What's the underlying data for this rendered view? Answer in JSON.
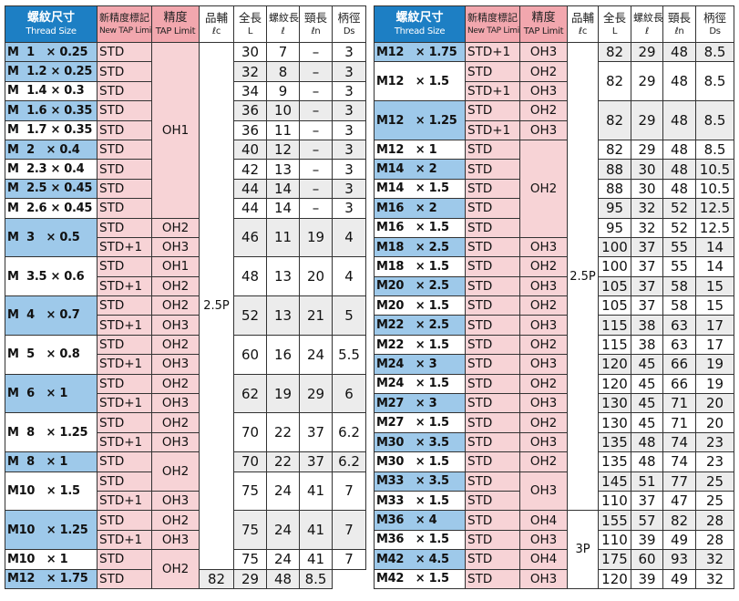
{
  "headers": {
    "size_ja": "螺紋尺寸",
    "size_en": "Thread Size",
    "tap_ja": "新精度標記",
    "tap_en": "New TAP Limit",
    "prec_ja": "精度",
    "prec_en": "TAP Limit",
    "aux_ja": "品輔",
    "aux_en": "ℓc",
    "len_ja": "全長",
    "len_en": "L",
    "thr_ja": "螺紋長",
    "thr_en": "ℓ",
    "neck_ja": "頸長",
    "neck_en": "ℓn",
    "shank_ja": "柄徑",
    "shank_en": "Ds"
  },
  "aux_values": {
    "left": "2.5P",
    "right_top": "2.5P",
    "right_bottom": "3P"
  },
  "left_rows": [
    {
      "size": "M  1   × 0.25",
      "tap": "STD",
      "prec": "OH1",
      "L": "30",
      "l": "7",
      "ln": "–",
      "ds": "3",
      "hl": true,
      "shade": false
    },
    {
      "size": "M  1.2 × 0.25",
      "tap": "STD",
      "L": "32",
      "l": "8",
      "ln": "–",
      "ds": "3",
      "hl": true,
      "shade": true
    },
    {
      "size": "M  1.4 × 0.3",
      "tap": "STD",
      "L": "34",
      "l": "9",
      "ln": "–",
      "ds": "3",
      "hl": false,
      "shade": false
    },
    {
      "size": "M  1.6 × 0.35",
      "tap": "STD",
      "L": "36",
      "l": "10",
      "ln": "–",
      "ds": "3",
      "hl": true,
      "shade": true
    },
    {
      "size": "M  1.7 × 0.35",
      "tap": "STD",
      "L": "36",
      "l": "11",
      "ln": "–",
      "ds": "3",
      "hl": false,
      "shade": false
    },
    {
      "size": "M  2   × 0.4",
      "tap": "STD",
      "L": "40",
      "l": "12",
      "ln": "–",
      "ds": "3",
      "hl": true,
      "shade": true
    },
    {
      "size": "M  2.3 × 0.4",
      "tap": "STD",
      "L": "42",
      "l": "13",
      "ln": "–",
      "ds": "3",
      "hl": false,
      "shade": false
    },
    {
      "size": "M  2.5 × 0.45",
      "tap": "STD",
      "L": "44",
      "l": "14",
      "ln": "–",
      "ds": "3",
      "hl": true,
      "shade": true
    },
    {
      "size": "M  2.6 × 0.45",
      "tap": "STD",
      "L": "44",
      "l": "14",
      "ln": "–",
      "ds": "3",
      "hl": false,
      "shade": false
    }
  ],
  "left_pairs": [
    {
      "size": "M  3   × 0.5",
      "hl": true,
      "shade": true,
      "L": "46",
      "l": "11",
      "ln": "19",
      "ds": "4",
      "tap1": "STD",
      "prec1": "OH2",
      "tap2": "STD+1",
      "prec2": "OH3"
    },
    {
      "size": "M  3.5 × 0.6",
      "hl": false,
      "shade": false,
      "L": "48",
      "l": "13",
      "ln": "20",
      "ds": "4",
      "tap1": "STD",
      "prec1": "OH1",
      "tap2": "STD+1",
      "prec2": "OH2"
    },
    {
      "size": "M  4   × 0.7",
      "hl": true,
      "shade": true,
      "L": "52",
      "l": "13",
      "ln": "21",
      "ds": "5",
      "tap1": "STD",
      "prec1": "OH2",
      "tap2": "STD+1",
      "prec2": "OH3"
    },
    {
      "size": "M  5   × 0.8",
      "hl": false,
      "shade": false,
      "L": "60",
      "l": "16",
      "ln": "24",
      "ds": "5.5",
      "tap1": "STD",
      "prec1": "OH2",
      "tap2": "STD+1",
      "prec2": "OH3"
    },
    {
      "size": "M  6   × 1",
      "hl": true,
      "shade": true,
      "L": "62",
      "l": "19",
      "ln": "29",
      "ds": "6",
      "tap1": "STD",
      "prec1": "OH2",
      "tap2": "STD+1",
      "prec2": "OH3"
    },
    {
      "size": "M  8   × 1.25",
      "hl": false,
      "shade": false,
      "L": "70",
      "l": "22",
      "ln": "37",
      "ds": "6.2",
      "tap1": "STD",
      "prec1": "OH2",
      "tap2": "STD+1",
      "prec2": "OH3"
    }
  ],
  "left_m8x1": {
    "size": "M  8   × 1",
    "hl": true,
    "shade": true,
    "tap": "STD",
    "prec": "OH2",
    "L": "70",
    "l": "22",
    "ln": "37",
    "ds": "6.2"
  },
  "left_m10x15": {
    "size": "M10   × 1.5",
    "hl": false,
    "shade": false,
    "tap1": "STD",
    "tap2": "STD+1",
    "prec2": "OH3",
    "L": "75",
    "l": "24",
    "ln": "41",
    "ds": "7"
  },
  "left_m10x125": {
    "size": "M10   × 1.25",
    "hl": true,
    "shade": true,
    "tap1": "STD",
    "prec1": "OH2",
    "tap2": "STD+1",
    "prec2": "OH3",
    "L": "75",
    "l": "24",
    "ln": "41",
    "ds": "7"
  },
  "left_tail": [
    {
      "size": "M10   × 1",
      "hl": false,
      "shade": false,
      "tap": "STD",
      "prec": "OH2",
      "L": "75",
      "l": "24",
      "ln": "41",
      "ds": "7"
    },
    {
      "size": "M12   × 1.75",
      "hl": true,
      "shade": true,
      "tap": "STD",
      "L": "82",
      "l": "29",
      "ln": "48",
      "ds": "8.5"
    }
  ],
  "right_rows": {
    "r1": {
      "size": "M12   × 1.75",
      "tap": "STD+1",
      "prec": "OH3",
      "L": "82",
      "l": "29",
      "ln": "48",
      "ds": "8.5"
    },
    "r2": {
      "size": "M12   × 1.5",
      "tap1": "STD",
      "prec1": "OH2",
      "tap2": "STD+1",
      "prec2": "OH3",
      "L": "82",
      "l": "29",
      "ln": "48",
      "ds": "8.5"
    },
    "r3": {
      "size": "M12   × 1.25",
      "tap1": "STD",
      "prec1": "OH2",
      "tap2": "STD+1",
      "prec2": "OH3",
      "L": "82",
      "l": "29",
      "ln": "48",
      "ds": "8.5"
    },
    "block": [
      {
        "size": "M12   × 1",
        "hl": false,
        "shade": false,
        "tap": "STD",
        "prec": "OH2",
        "L": "82",
        "l": "29",
        "ln": "48",
        "ds": "8.5"
      },
      {
        "size": "M14   × 2",
        "hl": true,
        "shade": true,
        "tap": "STD",
        "L": "88",
        "l": "30",
        "ln": "48",
        "ds": "10.5"
      },
      {
        "size": "M14   × 1.5",
        "hl": false,
        "shade": false,
        "tap": "STD",
        "L": "88",
        "l": "30",
        "ln": "48",
        "ds": "10.5"
      },
      {
        "size": "M16   × 2",
        "hl": true,
        "shade": true,
        "tap": "STD",
        "L": "95",
        "l": "32",
        "ln": "52",
        "ds": "12.5"
      },
      {
        "size": "M16   × 1.5",
        "hl": false,
        "shade": false,
        "tap": "STD",
        "L": "95",
        "l": "32",
        "ln": "52",
        "ds": "12.5"
      }
    ],
    "rest": [
      {
        "size": "M18   × 2.5",
        "hl": true,
        "shade": true,
        "tap": "STD",
        "prec": "OH3",
        "L": "100",
        "l": "37",
        "ln": "55",
        "ds": "14"
      },
      {
        "size": "M18   × 1.5",
        "hl": false,
        "shade": false,
        "tap": "STD",
        "prec": "OH2",
        "L": "100",
        "l": "37",
        "ln": "55",
        "ds": "14"
      },
      {
        "size": "M20   × 2.5",
        "hl": true,
        "shade": true,
        "tap": "STD",
        "prec": "OH3",
        "L": "105",
        "l": "37",
        "ln": "58",
        "ds": "15"
      },
      {
        "size": "M20   × 1.5",
        "hl": false,
        "shade": false,
        "tap": "STD",
        "prec": "OH2",
        "L": "105",
        "l": "37",
        "ln": "58",
        "ds": "15"
      },
      {
        "size": "M22   × 2.5",
        "hl": true,
        "shade": true,
        "tap": "STD",
        "prec": "OH3",
        "L": "115",
        "l": "38",
        "ln": "63",
        "ds": "17"
      },
      {
        "size": "M22   × 1.5",
        "hl": false,
        "shade": false,
        "tap": "STD",
        "prec": "OH2",
        "L": "115",
        "l": "38",
        "ln": "63",
        "ds": "17"
      },
      {
        "size": "M24   × 3",
        "hl": true,
        "shade": true,
        "tap": "STD",
        "prec": "OH3",
        "L": "120",
        "l": "45",
        "ln": "66",
        "ds": "19"
      },
      {
        "size": "M24   × 1.5",
        "hl": false,
        "shade": false,
        "tap": "STD",
        "prec": "OH2",
        "L": "120",
        "l": "45",
        "ln": "66",
        "ds": "19"
      },
      {
        "size": "M27   × 3",
        "hl": true,
        "shade": true,
        "tap": "STD",
        "prec": "OH3",
        "L": "130",
        "l": "45",
        "ln": "71",
        "ds": "20"
      },
      {
        "size": "M27   × 1.5",
        "hl": false,
        "shade": false,
        "tap": "STD",
        "prec": "OH2",
        "L": "130",
        "l": "45",
        "ln": "71",
        "ds": "20"
      },
      {
        "size": "M30   × 3.5",
        "hl": true,
        "shade": true,
        "tap": "STD",
        "prec": "OH3",
        "L": "135",
        "l": "48",
        "ln": "74",
        "ds": "23"
      },
      {
        "size": "M30   × 1.5",
        "hl": false,
        "shade": false,
        "tap": "STD",
        "prec": "OH2",
        "L": "135",
        "l": "48",
        "ln": "74",
        "ds": "23"
      }
    ],
    "m33a": {
      "size": "M33   × 3.5",
      "hl": true,
      "shade": true,
      "tap": "STD",
      "prec": "OH3",
      "L": "145",
      "l": "51",
      "ln": "77",
      "ds": "25"
    },
    "m33b": {
      "size": "M33   × 1.5",
      "hl": false,
      "shade": false,
      "tap": "STD",
      "L": "110",
      "l": "37",
      "ln": "47",
      "ds": "25"
    },
    "bottom": [
      {
        "size": "M36   × 4",
        "hl": true,
        "shade": true,
        "tap": "STD",
        "prec": "OH4",
        "L": "155",
        "l": "57",
        "ln": "82",
        "ds": "28"
      },
      {
        "size": "M36   × 1.5",
        "hl": false,
        "shade": false,
        "tap": "STD",
        "prec": "OH3",
        "L": "110",
        "l": "39",
        "ln": "49",
        "ds": "28"
      },
      {
        "size": "M42   × 4.5",
        "hl": true,
        "shade": true,
        "tap": "STD",
        "prec": "OH4",
        "L": "175",
        "l": "60",
        "ln": "93",
        "ds": "32"
      },
      {
        "size": "M42   × 1.5",
        "hl": false,
        "shade": false,
        "tap": "STD",
        "prec": "OH3",
        "L": "120",
        "l": "39",
        "ln": "49",
        "ds": "32"
      }
    ]
  }
}
